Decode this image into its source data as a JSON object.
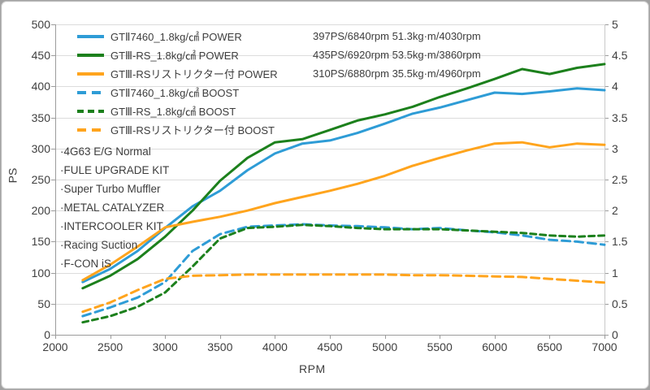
{
  "chart_data": {
    "type": "line",
    "title": "",
    "xlabel": "RPM",
    "ylabel_left": "PS",
    "ylabel_right": "",
    "x_range": [
      2000,
      7000
    ],
    "x_tick_step": 500,
    "y_left_range": [
      0,
      500
    ],
    "y_left_tick_step": 50,
    "y_right_range": [
      0,
      5
    ],
    "y_right_tick_step": 0.5,
    "grid": "horizontal-only",
    "legend_position": "top-left-inside",
    "x": [
      2250,
      2500,
      2750,
      3000,
      3250,
      3500,
      3750,
      4000,
      4250,
      4500,
      4750,
      5000,
      5250,
      5500,
      5750,
      6000,
      6250,
      6500,
      6750,
      7000
    ],
    "series": [
      {
        "key": "gt2-7460-power",
        "label": "GTⅡ7460_1.8kg/㎠ POWER",
        "stat": "397PS/6840rpm 51.3kg·m/4030rpm",
        "axis": "left",
        "color": "#2E9CD6",
        "style": "solid",
        "values": [
          85,
          106,
          135,
          172,
          207,
          232,
          265,
          292,
          308,
          313,
          325,
          340,
          356,
          366,
          378,
          390,
          388,
          392,
          397,
          394
        ]
      },
      {
        "key": "gt3rs-power",
        "label": "GTⅢ-RS_1.8kg/㎠ POWER",
        "stat": "435PS/6920rpm 53.5kg·m/3860rpm",
        "axis": "left",
        "color": "#1C801C",
        "style": "solid",
        "values": [
          75,
          95,
          122,
          158,
          200,
          248,
          285,
          310,
          315,
          330,
          345,
          355,
          367,
          383,
          397,
          412,
          428,
          420,
          430,
          436
        ]
      },
      {
        "key": "gt3rs-restrictor-power",
        "label": "GTⅢ-RSリストリクター付 POWER",
        "stat": "310PS/6880rpm 35.5kg·m/4960rpm",
        "axis": "left",
        "color": "#FFA41D",
        "style": "solid",
        "values": [
          88,
          113,
          142,
          173,
          182,
          190,
          200,
          212,
          222,
          232,
          243,
          256,
          272,
          285,
          297,
          308,
          310,
          302,
          308,
          306
        ]
      },
      {
        "key": "gt2-7460-boost",
        "label": "GTⅡ7460_1.8kg/㎠ BOOST",
        "stat": "",
        "axis": "right",
        "color": "#2E9CD6",
        "style": "dashed-long",
        "values": [
          0.3,
          0.44,
          0.6,
          0.85,
          1.35,
          1.62,
          1.74,
          1.76,
          1.78,
          1.76,
          1.75,
          1.73,
          1.7,
          1.72,
          1.68,
          1.65,
          1.6,
          1.53,
          1.5,
          1.45
        ]
      },
      {
        "key": "gt3rs-boost",
        "label": "GTⅢ-RS_1.8kg/㎠ BOOST",
        "stat": "",
        "axis": "right",
        "color": "#1C801C",
        "style": "dashed-short",
        "values": [
          0.2,
          0.3,
          0.45,
          0.68,
          1.1,
          1.55,
          1.72,
          1.74,
          1.77,
          1.75,
          1.72,
          1.7,
          1.7,
          1.7,
          1.68,
          1.66,
          1.64,
          1.6,
          1.58,
          1.6
        ]
      },
      {
        "key": "gt3rs-restrictor-boost",
        "label": "GTⅢ-RSリストリクター付 BOOST",
        "stat": "",
        "axis": "right",
        "color": "#FFA41D",
        "style": "dashed-long",
        "values": [
          0.37,
          0.52,
          0.72,
          0.9,
          0.95,
          0.96,
          0.97,
          0.97,
          0.97,
          0.97,
          0.97,
          0.97,
          0.96,
          0.96,
          0.95,
          0.94,
          0.93,
          0.9,
          0.87,
          0.84
        ]
      }
    ],
    "annotations": [
      "·4G63 E/G Normal",
      "·FULE UPGRADE KIT",
      "·Super Turbo Muffler",
      "·METAL CATALYZER",
      "·INTERCOOLER KIT",
      "·Racing Suction",
      "·F-CON iS"
    ]
  }
}
